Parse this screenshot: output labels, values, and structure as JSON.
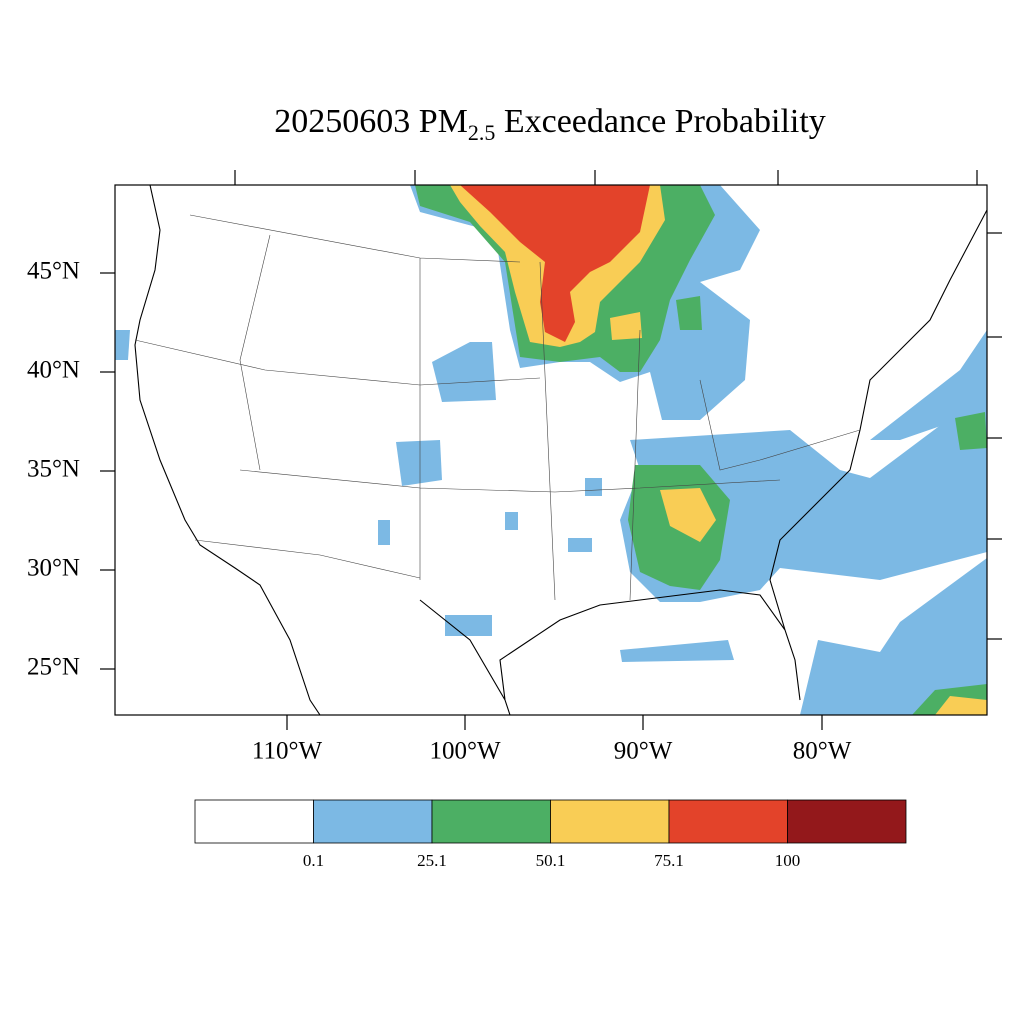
{
  "title": {
    "prefix": "20250603 PM",
    "subscript": "2.5",
    "suffix": " Exceedance Probability"
  },
  "lat_labels": [
    "45°N",
    "40°N",
    "35°N",
    "30°N",
    "25°N"
  ],
  "lon_labels": [
    "110°W",
    "100°W",
    "90°W",
    "80°W"
  ],
  "colorbar": {
    "colors": [
      "#ffffff",
      "#7cb9e4",
      "#4caf64",
      "#f9cd55",
      "#e3432a",
      "#93181b"
    ],
    "labels": [
      0.1,
      25.1,
      50.1,
      75.1,
      100
    ]
  }
}
